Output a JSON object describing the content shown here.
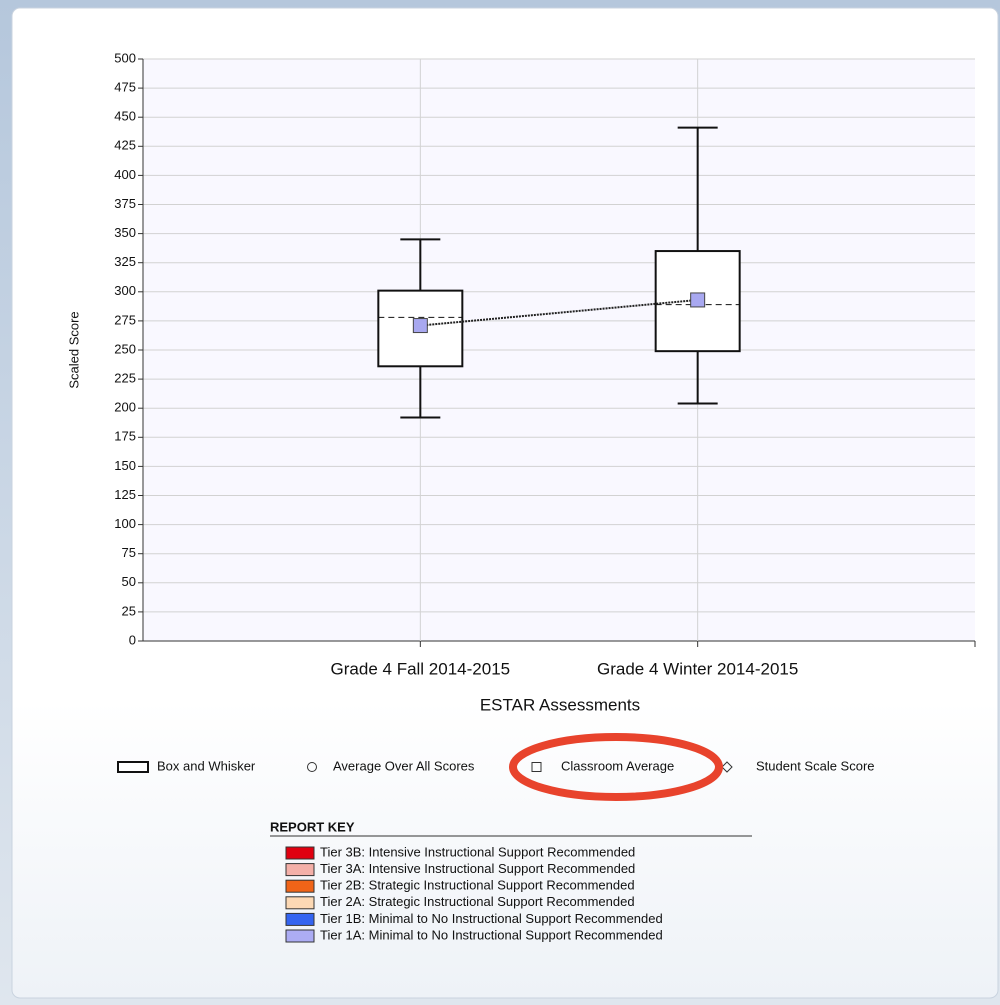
{
  "chart_data": {
    "type": "box",
    "y_label": "Scaled Score",
    "x_label": "ESTAR Assessments",
    "categories": [
      "Grade 4 Fall 2014-2015",
      "Grade 4 Winter 2014-2015"
    ],
    "boxes": [
      {
        "min": 192,
        "q1": 236,
        "median": 278,
        "q3": 301,
        "max": 345
      },
      {
        "min": 204,
        "q1": 249,
        "median": 289,
        "q3": 335,
        "max": 441
      }
    ],
    "classroom_average": [
      271,
      293
    ],
    "average_color": "#a8a8f0",
    "ylim": [
      0,
      500
    ],
    "yticks": [
      0,
      25,
      50,
      75,
      100,
      125,
      150,
      175,
      200,
      225,
      250,
      275,
      300,
      325,
      350,
      375,
      400,
      425,
      450,
      475,
      500
    ],
    "grid": true,
    "legend": [
      "Box and Whisker",
      "Average Over All Scores",
      "Classroom Average",
      "Student Scale Score"
    ]
  },
  "report_key": {
    "title": "REPORT KEY",
    "items": [
      {
        "label": "Tier 3B: Intensive Instructional Support Recommended",
        "color": "#e00010"
      },
      {
        "label": "Tier 3A: Intensive Instructional Support Recommended",
        "color": "#f4b0a8"
      },
      {
        "label": "Tier 2B: Strategic Instructional Support Recommended",
        "color": "#f06418"
      },
      {
        "label": "Tier 2A: Strategic Instructional Support Recommended",
        "color": "#fcd8b4"
      },
      {
        "label": "Tier 1B: Minimal to No Instructional Support Recommended",
        "color": "#3464f0"
      },
      {
        "label": "Tier 1A: Minimal to No Instructional Support Recommended",
        "color": "#acacf4"
      }
    ]
  }
}
